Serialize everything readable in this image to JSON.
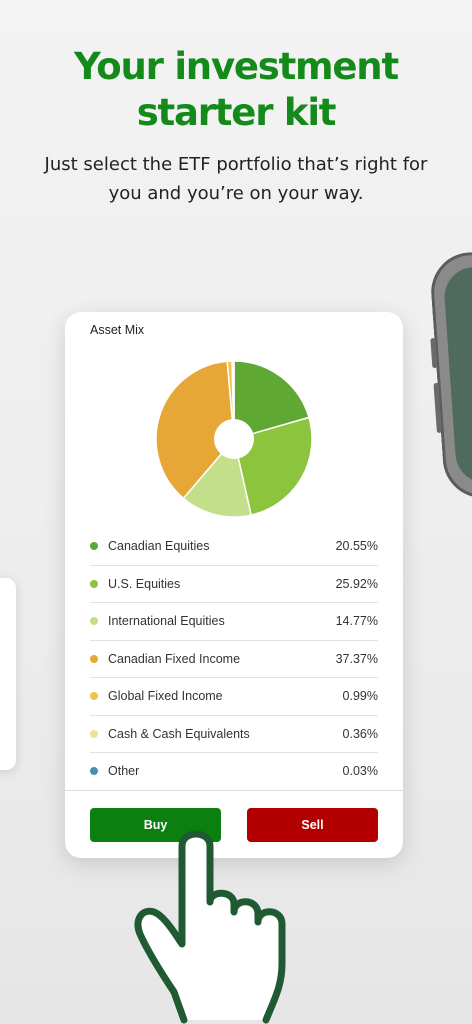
{
  "headline": {
    "line1": "Your investment",
    "line2": "starter kit"
  },
  "subtext": {
    "line1": "Just select the ETF portfolio that’s right for",
    "line2": "you and you’re on your way."
  },
  "card": {
    "title": "Asset Mix",
    "assets": [
      {
        "label": "Canadian Equities",
        "value": "20.55%",
        "pct": 20.55,
        "color": "#5ea833"
      },
      {
        "label": "U.S. Equities",
        "value": "25.92%",
        "pct": 25.92,
        "color": "#8cc43e"
      },
      {
        "label": "International Equities",
        "value": "14.77%",
        "pct": 14.77,
        "color": "#c3df8a"
      },
      {
        "label": "Canadian Fixed Income",
        "value": "37.37%",
        "pct": 37.37,
        "color": "#e6a737"
      },
      {
        "label": "Global Fixed Income",
        "value": "0.99%",
        "pct": 0.99,
        "color": "#eec24c"
      },
      {
        "label": "Cash & Cash Equivalents",
        "value": "0.36%",
        "pct": 0.36,
        "color": "#f3df9a"
      },
      {
        "label": "Other",
        "value": "0.03%",
        "pct": 0.03,
        "color": "#4a8fb0"
      }
    ],
    "buy_label": "Buy",
    "sell_label": "Sell",
    "colors": {
      "buy": "#0b7f10",
      "sell": "#b20000",
      "headline": "#148a1a"
    }
  }
}
